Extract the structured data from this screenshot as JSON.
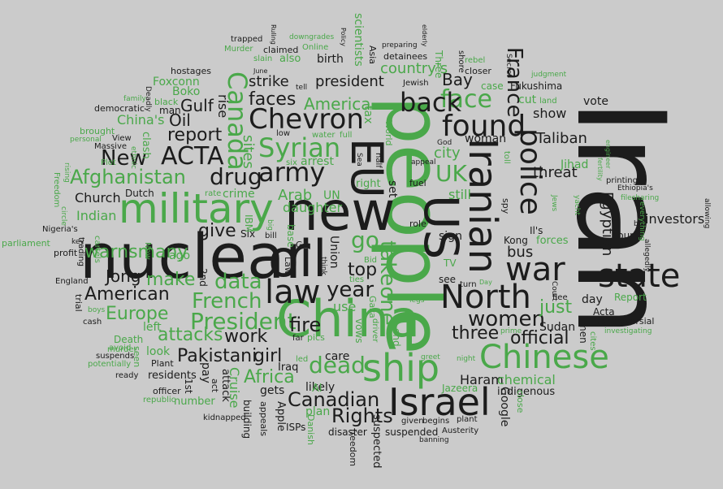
{
  "palette": {
    "background": "#cbcbcb",
    "dark": "#1c1c1c",
    "green": "#4aa84a"
  },
  "words": {
    "w01": "Iran",
    "w02": "people",
    "w03": "nuclear",
    "w04": "new",
    "w05": "China",
    "w06": "military",
    "w07": "oil",
    "w08": "EU",
    "w09": "US",
    "w10": "Iranian",
    "w11": "Israel",
    "w12": "ship",
    "w13": "Chinese",
    "w14": "state",
    "w15": "war",
    "w16": "police",
    "w17": "Chevron",
    "w18": "found",
    "w19": "North",
    "w20": "law",
    "w21": "army",
    "w22": "Syrian",
    "w23": "Canada",
    "w24": "ACTA",
    "w25": "Afghanistan",
    "w26": "drug",
    "w27": "President",
    "w28": "face",
    "w29": "back",
    "w30": "UK",
    "w31": "dead",
    "w32": "Canadian",
    "w33": "Rights",
    "w34": "women",
    "w35": "French",
    "w36": "data",
    "w37": "American",
    "w38": "warnsmany",
    "w39": "France",
    "w40": "report",
    "w41": "New",
    "w42": "give",
    "w43": "year",
    "w44": "go",
    "w45": "takeone",
    "w46": "attacks",
    "w47": "Europe",
    "w48": "Pakistani",
    "w49": "girl",
    "w50": "Africa",
    "w51": "work",
    "w52": "fire",
    "w53": "three",
    "w54": "official",
    "w55": "just",
    "w56": "make",
    "w57": "top",
    "w58": "faces",
    "w59": "strike",
    "w60": "president",
    "w61": "Jong",
    "w62": "Oil",
    "w63": "Gulf",
    "w64": "Taliban",
    "w65": "threat",
    "w66": "bus",
    "w67": "Egyptian",
    "w68": "investors",
    "w69": "sites",
    "w70": "rise",
    "w71": "America",
    "w72": "daughter",
    "w73": "Arab",
    "w74": "Church",
    "w75": "Indian",
    "w76": "Bay",
    "w77": "country's",
    "w78": "city",
    "w79": "woman",
    "w80": "show",
    "w81": "vote",
    "w82": "Haram",
    "w83": "chemical",
    "w84": "Google",
    "w85": "indigenous",
    "w86": "care",
    "w87": "likely",
    "w88": "Iraq",
    "w89": "gets",
    "w90": "Apple",
    "w91": "Al",
    "w92": "plan",
    "w93": "ISPs",
    "w94": "building",
    "w95": "appeals",
    "w96": "suspected",
    "w97": "freedom",
    "w98": "disaster",
    "w99": "suspended",
    "w100": "given",
    "w101": "begins",
    "w102": "plant",
    "w103": "banning",
    "w104": "Austerity",
    "w105": "Jazeera",
    "w106": "close",
    "w107": "Danish",
    "w108": "kidnapped",
    "w109": "officer",
    "w110": "republic",
    "w111": "number",
    "w112": "1st",
    "w113": "act",
    "w114": "attack",
    "w115": "Cruise",
    "w116": "pay",
    "w117": "residents",
    "w118": "ready",
    "w119": "Plant",
    "w120": "potentially",
    "w121": "suspends",
    "w122": "avoid",
    "w123": "seen",
    "w124": "look",
    "w125": "left",
    "w126": "murder",
    "w127": "Death",
    "w128": "cash",
    "w129": "trial",
    "w130": "boys",
    "w131": "England",
    "w132": "profit",
    "w133": "key",
    "w134": "parliament",
    "w135": "Nigeria's",
    "w136": "circle",
    "w137": "Freedom",
    "w138": "rising",
    "w139": "personal",
    "w140": "brought",
    "w141": "Massive",
    "w142": "View",
    "w143": "Plot",
    "w144": "ethnic",
    "w145": "clash",
    "w146": "family",
    "w147": "black",
    "w148": "Deadly",
    "w149": "man",
    "w150": "democratic",
    "w151": "Boko",
    "w152": "Foxconn",
    "w153": "hostages",
    "w154": "China's",
    "w155": "Dutch",
    "w156": "rate",
    "w157": "crime",
    "w158": "trading",
    "w159": "cartels",
    "w160": "Now",
    "w161": "ago",
    "w162": "2nd",
    "w163": "IBM",
    "w164": "Six",
    "w165": "bill",
    "w166": "big",
    "w167": "base",
    "w168": "Law",
    "w169": "Go",
    "w170": "think",
    "w171": "ties",
    "w172": "use",
    "w173": "Gaza",
    "w174": "driver",
    "w175": "vows",
    "w176": "end",
    "w177": "led",
    "w178": "pics",
    "w179": "far",
    "w180": "Union",
    "w181": "Bid",
    "w182": "TV",
    "w183": "see",
    "w184": "turn",
    "w185": "Day",
    "w186": "legs",
    "w187": "night",
    "w188": "greet",
    "w189": "prime",
    "w190": "Sudan",
    "w191": "flee",
    "w192": "men",
    "w193": "cites",
    "w194": "Court",
    "w195": "day",
    "w196": "Acta",
    "w197": "controversial",
    "w198": "investigating",
    "w199": "Report",
    "w200": "allegedly",
    "w201": "four",
    "w202": "boy",
    "w203": "everything",
    "w204": "filesharing",
    "w205": "Ethiopia's",
    "w206": "printing",
    "w207": "fertility",
    "w208": "engineer",
    "w209": "allowing",
    "w210": "yacht",
    "w211": "Jews",
    "w212": "spy",
    "w213": "Kong",
    "w214": "Il's",
    "w215": "sign",
    "w216": "forces",
    "w217": "role",
    "w218": "fuel",
    "w219": "appeal",
    "w220": "God",
    "w221": "set",
    "w222": "still",
    "w223": "UN",
    "w224": "right",
    "w225": "arrest",
    "w226": "six",
    "w227": "water",
    "w228": "full",
    "w229": "low",
    "w230": "tax",
    "w231": "World",
    "w232": "half",
    "w233": "Sea",
    "w234": "trapped",
    "w235": "claimed",
    "w236": "Murder",
    "w237": "slain",
    "w238": "also",
    "w239": "June",
    "w240": "Ruling",
    "w241": "downgrades",
    "w242": "Online",
    "w243": "birth",
    "w244": "tell",
    "w245": "Policy",
    "w246": "Asia",
    "w247": "scientists",
    "w248": "preparing",
    "w249": "detainees",
    "w250": "elderly",
    "w251": "Three",
    "w252": "Jewish",
    "w253": "shore",
    "w254": "rebel",
    "w255": "closer",
    "w256": "Secret",
    "w257": "judgment",
    "w258": "case",
    "w259": "Fukushima",
    "w260": "cut",
    "w261": "land",
    "w262": "toll",
    "w263": "Jihad"
  }
}
